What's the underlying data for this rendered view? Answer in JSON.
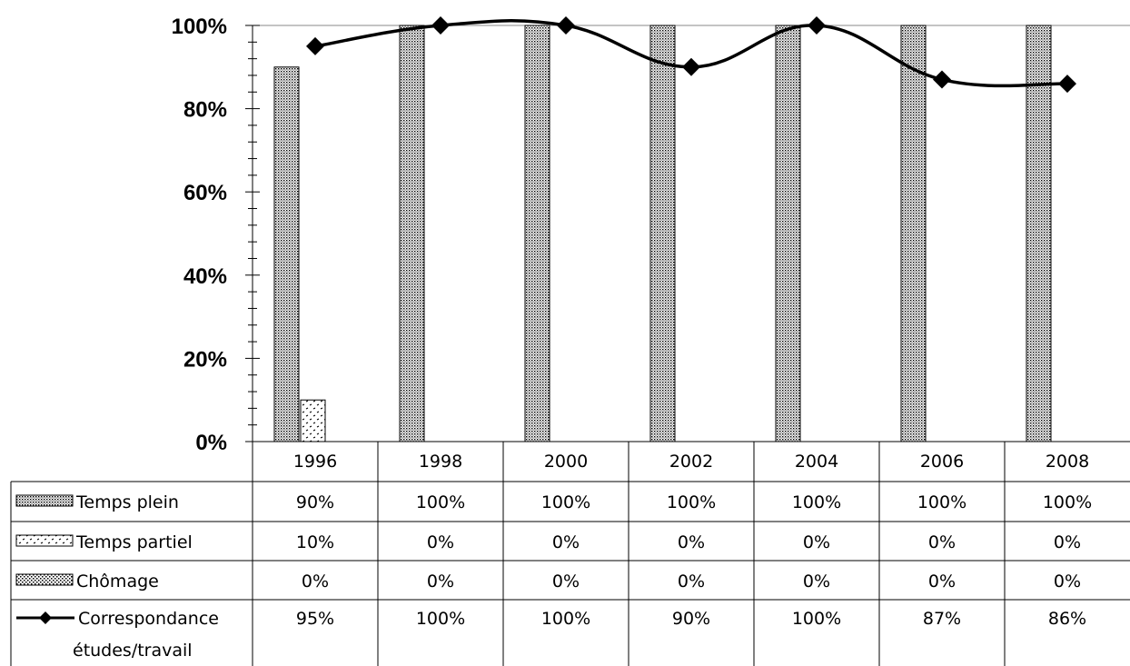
{
  "chart_data": {
    "type": "bar",
    "categories": [
      "1996",
      "1998",
      "2000",
      "2002",
      "2004",
      "2006",
      "2008"
    ],
    "series": [
      {
        "name": "Temps plein",
        "type": "bar",
        "pattern": "dense-dots",
        "values": [
          90,
          100,
          100,
          100,
          100,
          100,
          100
        ],
        "labels": [
          "90%",
          "100%",
          "100%",
          "100%",
          "100%",
          "100%",
          "100%"
        ]
      },
      {
        "name": "Temps partiel",
        "type": "bar",
        "pattern": "sparse-marks",
        "values": [
          10,
          0,
          0,
          0,
          0,
          0,
          0
        ],
        "labels": [
          "10%",
          "0%",
          "0%",
          "0%",
          "0%",
          "0%",
          "0%"
        ]
      },
      {
        "name": "Chômage",
        "type": "bar",
        "pattern": "medium-dots",
        "values": [
          0,
          0,
          0,
          0,
          0,
          0,
          0
        ],
        "labels": [
          "0%",
          "0%",
          "0%",
          "0%",
          "0%",
          "0%",
          "0%"
        ]
      },
      {
        "name": "Correspondance études/travail",
        "name_lines": [
          "Correspondance",
          "études/travail"
        ],
        "type": "line",
        "marker": "diamond",
        "smooth": true,
        "values": [
          95,
          100,
          100,
          90,
          100,
          87,
          86
        ],
        "labels": [
          "95%",
          "100%",
          "100%",
          "90%",
          "100%",
          "87%",
          "86%"
        ]
      }
    ],
    "ylim": [
      0,
      100
    ],
    "yticks": [
      "0%",
      "20%",
      "40%",
      "60%",
      "80%",
      "100%"
    ],
    "ytick_values": [
      0,
      20,
      40,
      60,
      80,
      100
    ],
    "title": "",
    "xlabel": "",
    "ylabel": "",
    "grid": false,
    "legend": "data-table",
    "colors": {
      "line": "#000000",
      "bar_fill": "#ffffff",
      "pattern": "#000000",
      "background": "#ffffff"
    }
  }
}
